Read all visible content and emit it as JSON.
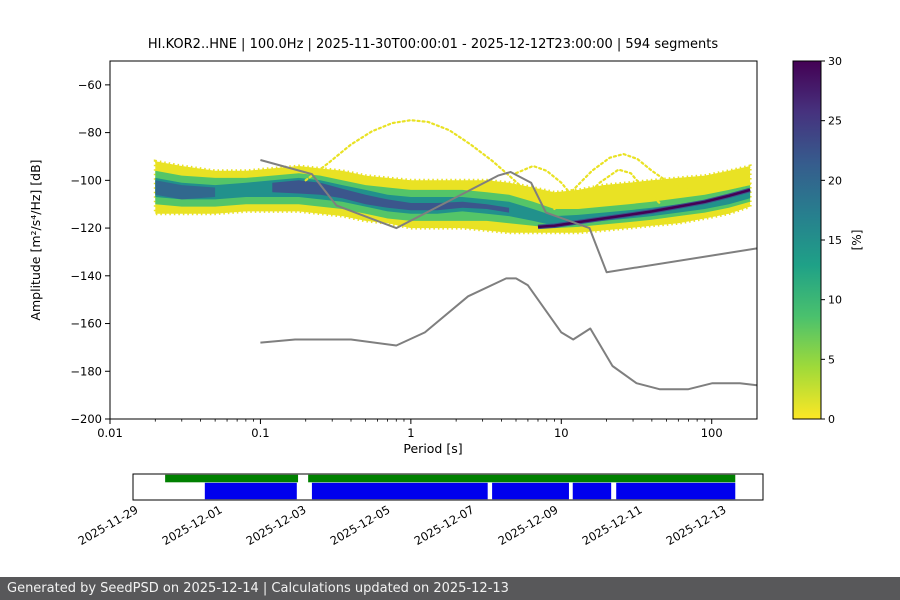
{
  "title": "HI.KOR2..HNE | 100.0Hz | 2025-11-30T00:00:01 - 2025-12-12T23:00:00 | 594 segments",
  "footer": {
    "text": "Generated by SeedPSD on 2025-12-14 | Calculations updated on 2025-12-13",
    "bg": "#58585a",
    "fg": "#f2f2f2"
  },
  "chart_data": {
    "type": "heatmap",
    "title": "HI.KOR2..HNE | 100.0Hz | 2025-11-30T00:00:01 - 2025-12-12T23:00:00 | 594 segments",
    "xlabel": "Period [s]",
    "ylabel": "Amplitude [m²/s⁴/Hz] [dB]",
    "xlim": [
      0.01,
      200
    ],
    "ylim": [
      -200,
      -50
    ],
    "grid": false,
    "xticks": [
      0.01,
      0.1,
      1,
      10,
      100
    ],
    "xtick_labels": [
      "0.01",
      "0.1",
      "1",
      "10",
      "100"
    ],
    "yticks": [
      -60,
      -80,
      -100,
      -120,
      -140,
      -160,
      -180,
      -200
    ],
    "ytick_labels": [
      "−60",
      "−80",
      "−100",
      "−120",
      "−140",
      "−160",
      "−180",
      "−200"
    ],
    "colorbar": {
      "label": "[%]",
      "min": 0,
      "max": 30,
      "ticks": [
        0,
        5,
        10,
        15,
        20,
        25,
        30
      ],
      "tick_labels": [
        "0",
        "5",
        "10",
        "15",
        "20",
        "25",
        "30"
      ],
      "colors_top_to_bottom": [
        "#440154",
        "#46327e",
        "#365c8d",
        "#277f8e",
        "#1fa187",
        "#4ac16d",
        "#a0da39",
        "#fde725"
      ]
    },
    "noise_models": {
      "color": "#7f7f7f",
      "nhnm": [
        [
          0.1,
          -91.5
        ],
        [
          0.22,
          -97.4
        ],
        [
          0.32,
          -110.5
        ],
        [
          0.8,
          -120
        ],
        [
          3.8,
          -98
        ],
        [
          4.6,
          -96.5
        ],
        [
          6.3,
          -101
        ],
        [
          7.9,
          -113.5
        ],
        [
          15.4,
          -120
        ],
        [
          20,
          -138.5
        ],
        [
          200,
          -128.5
        ]
      ],
      "nlnm": [
        [
          0.1,
          -168
        ],
        [
          0.17,
          -166.7
        ],
        [
          0.4,
          -166.7
        ],
        [
          0.8,
          -169.2
        ],
        [
          1.24,
          -163.7
        ],
        [
          2.4,
          -148.6
        ],
        [
          4.3,
          -141.1
        ],
        [
          5,
          -141.1
        ],
        [
          6,
          -144
        ],
        [
          10,
          -163.7
        ],
        [
          12,
          -166.7
        ],
        [
          15.6,
          -162.1
        ],
        [
          21.9,
          -177.8
        ],
        [
          31.6,
          -185
        ],
        [
          45,
          -187.5
        ],
        [
          70,
          -187.5
        ],
        [
          101,
          -185
        ],
        [
          154,
          -185
        ],
        [
          200,
          -185.9
        ]
      ]
    },
    "density_layers": [
      {
        "name": "outer-low-percent",
        "color": "#e9e224",
        "periods": [
          0.02,
          0.03,
          0.05,
          0.08,
          0.12,
          0.18,
          0.25,
          0.35,
          0.5,
          0.7,
          1.0,
          1.5,
          2.2,
          3.2,
          4.5,
          6.5,
          9,
          13,
          19,
          28,
          40,
          60,
          90,
          130,
          180
        ],
        "top": [
          -92,
          -94,
          -96,
          -96,
          -95,
          -94,
          -95,
          -96,
          -98,
          -99,
          -100,
          -100,
          -100,
          -100,
          -101,
          -103,
          -105,
          -104,
          -102,
          -101,
          -100,
          -99,
          -98,
          -96,
          -94
        ],
        "bottom": [
          -114,
          -114,
          -114,
          -113,
          -113,
          -113,
          -114,
          -115,
          -117,
          -118,
          -120,
          -120,
          -120,
          -121,
          -122,
          -122,
          -122,
          -122,
          -121,
          -120,
          -119,
          -118,
          -116,
          -114,
          -111
        ]
      },
      {
        "name": "mid-percent",
        "color": "#54c568",
        "periods": [
          0.02,
          0.03,
          0.05,
          0.08,
          0.12,
          0.18,
          0.25,
          0.35,
          0.5,
          0.7,
          1.0,
          1.5,
          2.2,
          3.2,
          4.5,
          6.5,
          9,
          13,
          19,
          28,
          40,
          60,
          90,
          130,
          180
        ],
        "top": [
          -96,
          -98,
          -99,
          -99,
          -98,
          -97,
          -98,
          -100,
          -102,
          -103,
          -104,
          -104,
          -104,
          -105,
          -106,
          -109,
          -112,
          -112,
          -111,
          -110,
          -109,
          -107.5,
          -106,
          -104,
          -102
        ],
        "bottom": [
          -110,
          -111,
          -111,
          -110,
          -110,
          -110,
          -111,
          -112,
          -114,
          -116,
          -117,
          -117,
          -117,
          -117,
          -118,
          -119,
          -120,
          -119.5,
          -118.5,
          -117.5,
          -116.5,
          -115,
          -113.5,
          -111.5,
          -109
        ]
      },
      {
        "name": "high-percent-core",
        "color": "#21918c",
        "periods": [
          0.02,
          0.03,
          0.05,
          0.08,
          0.12,
          0.18,
          0.25,
          0.35,
          0.5,
          0.7,
          1.0,
          1.5,
          2.2,
          3.2,
          4.5,
          6.5,
          9,
          13,
          19,
          28,
          40,
          60,
          90,
          130,
          180
        ],
        "top": [
          -99,
          -101,
          -102,
          -101,
          -100,
          -99,
          -100,
          -102,
          -104,
          -106,
          -107,
          -107,
          -107,
          -108,
          -109,
          -112,
          -115,
          -114.5,
          -113.5,
          -112.5,
          -111.5,
          -110,
          -108.5,
          -106.5,
          -104.5
        ],
        "bottom": [
          -107,
          -108,
          -108,
          -107,
          -107,
          -107,
          -108,
          -109,
          -111,
          -113,
          -114,
          -114,
          -113,
          -114,
          -115,
          -117,
          -119,
          -118,
          -117,
          -116,
          -115,
          -113.5,
          -112,
          -110,
          -107.5
        ]
      },
      {
        "name": "deep-core",
        "color": "#3b568c",
        "periods": [
          0.12,
          0.18,
          0.25,
          0.35,
          0.5,
          0.7,
          1.0,
          1.5,
          2.2,
          3.2,
          4.5
        ],
        "top": [
          -101,
          -100,
          -101,
          -103.5,
          -106,
          -108,
          -109.5,
          -109.5,
          -109,
          -110,
          -111.5
        ],
        "bottom": [
          -105,
          -105.5,
          -106,
          -107.5,
          -110,
          -111.5,
          -112.5,
          -112.5,
          -111.5,
          -112,
          -113.5
        ]
      },
      {
        "name": "deep-core-left",
        "color": "#31688e",
        "periods": [
          0.02,
          0.03,
          0.05
        ],
        "top": [
          -100,
          -102,
          -103
        ],
        "bottom": [
          -106,
          -108,
          -107
        ]
      }
    ],
    "sparse_arcs": [
      {
        "color": "#e9e224",
        "points": [
          [
            0.2,
            -100
          ],
          [
            0.28,
            -93
          ],
          [
            0.4,
            -85
          ],
          [
            0.55,
            -79.5
          ],
          [
            0.75,
            -76
          ],
          [
            1.0,
            -74.8
          ],
          [
            1.3,
            -75.5
          ],
          [
            1.8,
            -79
          ],
          [
            2.5,
            -85
          ],
          [
            3.5,
            -92
          ],
          [
            4.5,
            -98
          ],
          [
            5.5,
            -103
          ]
        ]
      },
      {
        "color": "#e9e224",
        "points": [
          [
            9,
            -112
          ],
          [
            12,
            -104
          ],
          [
            16,
            -96
          ],
          [
            21,
            -90.5
          ],
          [
            26,
            -89
          ],
          [
            32,
            -91
          ],
          [
            40,
            -96
          ],
          [
            52,
            -101
          ],
          [
            70,
            -103.5
          ],
          [
            100,
            -104
          ],
          [
            140,
            -103
          ],
          [
            180,
            -101.5
          ]
        ]
      },
      {
        "color": "#e9e224",
        "points": [
          [
            13,
            -110
          ],
          [
            18,
            -101
          ],
          [
            24,
            -95.5
          ],
          [
            29,
            -97
          ],
          [
            36,
            -104
          ],
          [
            46,
            -110
          ]
        ]
      },
      {
        "color": "#e9e224",
        "points": [
          [
            5,
            -97
          ],
          [
            6.5,
            -94
          ],
          [
            8,
            -96
          ],
          [
            10,
            -101
          ],
          [
            12,
            -107
          ]
        ]
      }
    ],
    "dark_ridge": {
      "color_outer": "#3b528b",
      "color_inner": "#440154",
      "points": [
        [
          7,
          -119.5
        ],
        [
          9,
          -119
        ],
        [
          13,
          -117.5
        ],
        [
          19,
          -116
        ],
        [
          28,
          -114.5
        ],
        [
          40,
          -113
        ],
        [
          60,
          -111
        ],
        [
          90,
          -109
        ],
        [
          130,
          -106.5
        ],
        [
          180,
          -104
        ]
      ]
    }
  },
  "timeline": {
    "labels": [
      "2025-11-29",
      "2025-12-01",
      "2025-12-03",
      "2025-12-05",
      "2025-12-07",
      "2025-12-09",
      "2025-12-11",
      "2025-12-13"
    ],
    "days_span": 15,
    "label_day_step": 2,
    "green_segments": [
      [
        0.051,
        0.262
      ],
      [
        0.278,
        0.956
      ]
    ],
    "blue_segments": [
      [
        0.114,
        0.26
      ],
      [
        0.284,
        0.563
      ],
      [
        0.57,
        0.692
      ],
      [
        0.698,
        0.759
      ],
      [
        0.767,
        0.956
      ]
    ],
    "colors": {
      "green": "#008000",
      "blue": "#0000ee"
    }
  }
}
